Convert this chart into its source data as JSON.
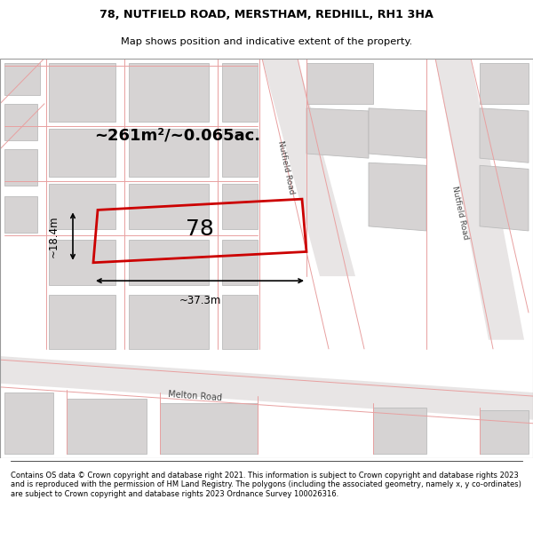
{
  "title_line1": "78, NUTFIELD ROAD, MERSTHAM, REDHILL, RH1 3HA",
  "title_line2": "Map shows position and indicative extent of the property.",
  "footer_text": "Contains OS data © Crown copyright and database right 2021. This information is subject to Crown copyright and database rights 2023 and is reproduced with the permission of HM Land Registry. The polygons (including the associated geometry, namely x, y co-ordinates) are subject to Crown copyright and database rights 2023 Ordnance Survey 100026316.",
  "area_label": "~261m²/~0.065ac.",
  "property_number": "78",
  "width_label": "~37.3m",
  "height_label": "~18.4m",
  "map_bg": "#f2efef",
  "block_face": "#d6d3d3",
  "block_edge": "#bbbbbb",
  "road_face": "#e8e5e5",
  "pink": "#e8a0a0",
  "red": "#cc0000",
  "white": "#ffffff",
  "title_fs": 9,
  "sub_fs": 8,
  "footer_fs": 6.0
}
